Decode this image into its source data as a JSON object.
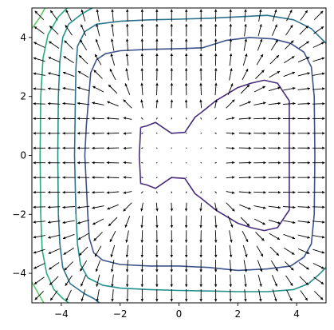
{
  "chart_data": {
    "type": "contour",
    "title": "",
    "xlabel": "",
    "ylabel": "",
    "xlim": [
      -5,
      5
    ],
    "ylim": [
      -5,
      5
    ],
    "aspect": "equal",
    "grid": false,
    "legend": "none",
    "xticks": [
      {
        "value": -4,
        "label": "−4"
      },
      {
        "value": -2,
        "label": "−2"
      },
      {
        "value": 0,
        "label": "0"
      },
      {
        "value": 2,
        "label": "2"
      },
      {
        "value": 4,
        "label": "4"
      }
    ],
    "yticks": [
      {
        "value": -4,
        "label": "−4"
      },
      {
        "value": -2,
        "label": "−2"
      },
      {
        "value": 0,
        "label": "0"
      },
      {
        "value": 2,
        "label": "2"
      },
      {
        "value": 4,
        "label": "4"
      }
    ],
    "contours": [
      {
        "level_index": 0,
        "color": "#472d7b",
        "points": [
          [
            -1.3,
            0.95
          ],
          [
            -1.1,
            1.0
          ],
          [
            -0.8,
            1.12
          ],
          [
            -0.3,
            0.78
          ],
          [
            -0.25,
            0.75
          ],
          [
            0.2,
            0.78
          ],
          [
            0.55,
            1.3
          ],
          [
            0.75,
            1.45
          ],
          [
            1.25,
            1.85
          ],
          [
            1.75,
            2.15
          ],
          [
            2.0,
            2.3
          ],
          [
            2.45,
            2.45
          ],
          [
            2.9,
            2.55
          ],
          [
            3.35,
            2.45
          ],
          [
            3.75,
            1.85
          ],
          [
            3.75,
            -1.85
          ],
          [
            3.35,
            -2.45
          ],
          [
            2.9,
            -2.55
          ],
          [
            2.45,
            -2.45
          ],
          [
            2.0,
            -2.3
          ],
          [
            1.75,
            -2.15
          ],
          [
            1.25,
            -1.85
          ],
          [
            0.75,
            -1.45
          ],
          [
            0.55,
            -1.3
          ],
          [
            0.2,
            -0.78
          ],
          [
            -0.25,
            -0.75
          ],
          [
            -0.3,
            -0.78
          ],
          [
            -0.8,
            -1.12
          ],
          [
            -1.1,
            -1.0
          ],
          [
            -1.3,
            -0.95
          ],
          [
            -1.35,
            0.0
          ],
          [
            -1.3,
            0.95
          ]
        ]
      },
      {
        "level_index": 1,
        "color": "#3b528b",
        "points": [
          [
            -3.1,
            -2.0
          ],
          [
            -3.15,
            -1.0
          ],
          [
            -3.2,
            0.0
          ],
          [
            -3.15,
            1.0
          ],
          [
            -3.05,
            2.2
          ],
          [
            -3.0,
            2.8
          ],
          [
            -2.8,
            3.25
          ],
          [
            -2.5,
            3.45
          ],
          [
            -2.0,
            3.55
          ],
          [
            -1.0,
            3.6
          ],
          [
            0.0,
            3.62
          ],
          [
            0.8,
            3.65
          ],
          [
            1.6,
            3.9
          ],
          [
            2.4,
            4.0
          ],
          [
            3.2,
            3.95
          ],
          [
            3.8,
            3.8
          ],
          [
            4.25,
            3.5
          ],
          [
            4.5,
            3.0
          ],
          [
            4.6,
            2.0
          ],
          [
            4.62,
            0.0
          ],
          [
            4.6,
            -2.0
          ],
          [
            4.5,
            -3.0
          ],
          [
            4.25,
            -3.45
          ],
          [
            3.8,
            -3.75
          ],
          [
            3.0,
            -3.85
          ],
          [
            2.0,
            -3.9
          ],
          [
            1.0,
            -3.8
          ],
          [
            0.0,
            -3.75
          ],
          [
            -1.0,
            -3.75
          ],
          [
            -2.0,
            -3.7
          ],
          [
            -2.6,
            -3.55
          ],
          [
            -2.9,
            -3.3
          ],
          [
            -3.05,
            -2.8
          ],
          [
            -3.1,
            -2.0
          ]
        ]
      },
      {
        "level_index": 2,
        "color": "#2c728e",
        "points": [
          [
            -3.5,
            -2.0
          ],
          [
            -3.55,
            0.0
          ],
          [
            -3.52,
            2.0
          ],
          [
            -3.5,
            3.0
          ],
          [
            -3.45,
            3.7
          ],
          [
            -3.2,
            4.2
          ],
          [
            -2.8,
            4.45
          ],
          [
            -2.0,
            4.55
          ],
          [
            -1.0,
            4.6
          ],
          [
            0.0,
            4.62
          ],
          [
            1.0,
            4.65
          ],
          [
            2.0,
            4.7
          ],
          [
            3.0,
            4.75
          ],
          [
            3.9,
            4.6
          ],
          [
            4.5,
            4.3
          ],
          [
            5.0,
            3.8
          ]
        ]
      },
      {
        "level_index": 3,
        "color": "#21908d",
        "points": [
          [
            -4.1,
            -2.0
          ],
          [
            -4.12,
            0.0
          ],
          [
            -4.1,
            2.0
          ],
          [
            -4.05,
            3.2
          ],
          [
            -3.95,
            4.0
          ],
          [
            -3.75,
            4.45
          ],
          [
            -3.3,
            4.8
          ],
          [
            -2.95,
            5.0
          ]
        ]
      },
      {
        "level_index": 4,
        "color": "#21908d",
        "points": [
          [
            -3.5,
            -2.0
          ],
          [
            -3.45,
            -3.0
          ],
          [
            -3.35,
            -3.7
          ],
          [
            -3.1,
            -4.15
          ],
          [
            -2.6,
            -4.4
          ],
          [
            -2.0,
            -4.5
          ],
          [
            -1.0,
            -4.55
          ],
          [
            0.0,
            -4.58
          ],
          [
            1.0,
            -4.6
          ],
          [
            2.0,
            -4.62
          ],
          [
            3.0,
            -4.62
          ],
          [
            3.9,
            -4.55
          ],
          [
            4.4,
            -4.35
          ],
          [
            4.75,
            -4.05
          ],
          [
            5.0,
            -3.8
          ]
        ]
      },
      {
        "level_index": 5,
        "color": "#2c728e",
        "points": [
          [
            -4.1,
            -2.0
          ],
          [
            -4.05,
            -3.0
          ],
          [
            -3.95,
            -3.8
          ],
          [
            -3.7,
            -4.35
          ],
          [
            -3.2,
            -4.7
          ],
          [
            -2.9,
            -4.85
          ],
          [
            -2.7,
            -5.0
          ]
        ]
      },
      {
        "level_index": 6,
        "color": "#27ad81",
        "points": [
          [
            -4.7,
            -2.0
          ],
          [
            -4.72,
            0.0
          ],
          [
            -4.7,
            2.0
          ],
          [
            -4.62,
            3.3
          ],
          [
            -4.45,
            4.1
          ],
          [
            -4.1,
            4.7
          ],
          [
            -3.8,
            5.0
          ]
        ]
      },
      {
        "level_index": 7,
        "color": "#5ec962",
        "points": [
          [
            -5.0,
            4.3
          ],
          [
            -4.75,
            4.65
          ],
          [
            -4.55,
            5.0
          ]
        ]
      },
      {
        "level_index": 8,
        "color": "#27ad81",
        "points": [
          [
            -4.7,
            -2.0
          ],
          [
            -4.65,
            -3.2
          ],
          [
            -4.5,
            -4.0
          ],
          [
            -4.25,
            -4.55
          ],
          [
            -3.95,
            -4.85
          ],
          [
            -3.75,
            -5.0
          ]
        ]
      },
      {
        "level_index": 9,
        "color": "#5ec962",
        "points": [
          [
            -5.0,
            -4.3
          ],
          [
            -4.8,
            -4.65
          ],
          [
            -4.6,
            -5.0
          ]
        ]
      }
    ],
    "quiver": {
      "color": "#000000",
      "grid_x": [
        -4.75,
        -4.25,
        -3.75,
        -3.25,
        -2.75,
        -2.25,
        -1.75,
        -1.25,
        -0.75,
        -0.25,
        0.25,
        0.75,
        1.25,
        1.75,
        2.25,
        2.75,
        3.25,
        3.75,
        4.25,
        4.75
      ],
      "grid_y": [
        -4.75,
        -4.25,
        -3.75,
        -3.25,
        -2.75,
        -2.25,
        -1.75,
        -1.25,
        -0.75,
        -0.25,
        0.25,
        0.75,
        1.25,
        1.75,
        2.25,
        2.75,
        3.25,
        3.75,
        4.25,
        4.75
      ],
      "field": "gradient of f(x,y) = x^4/4 + y^4/4 - x^2/2 - y^2/2 (scaled)"
    }
  }
}
